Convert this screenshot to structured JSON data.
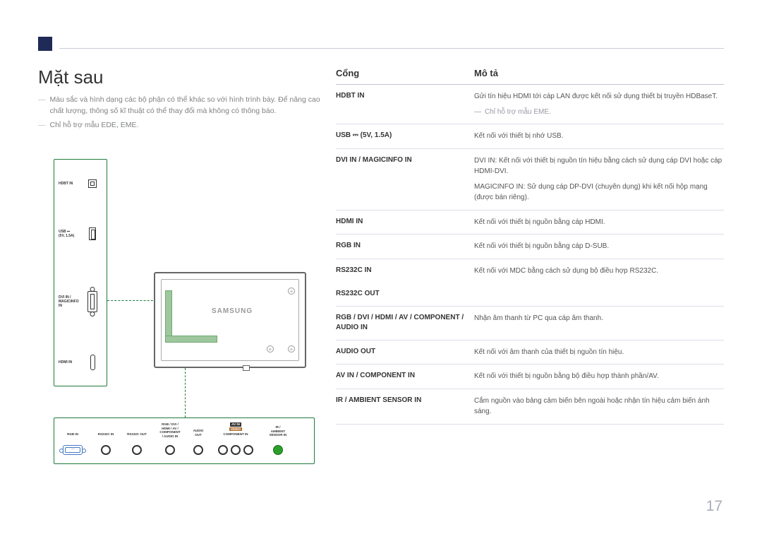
{
  "page": {
    "title": "Mặt sau",
    "number": "17",
    "brand_label": "SAMSUNG"
  },
  "colors": {
    "header_block": "#1f2a56",
    "rule": "#c7cbda",
    "diagram_border": "#1f7a3a",
    "dsub_blue": "#4679c4",
    "jack_green": "#2aa02a",
    "text_muted": "#808284"
  },
  "notes": [
    "Màu sắc và hình dạng các bộ phận có thể khác so với hình trình bày. Để nâng cao chất lượng, thông số kĩ thuật có thể thay đổi mà không có thông báo.",
    "Chỉ hỗ trợ mẫu EDE, EME."
  ],
  "table": {
    "head_port": "Cổng",
    "head_desc": "Mô tả",
    "rows": [
      {
        "port": "HDBT IN",
        "desc": "Gửi tín hiệu HDMI tới cáp LAN được kết nối sử dụng thiết bị truyền HDBaseT.",
        "note": "Chỉ hỗ trợ mẫu EME."
      },
      {
        "port": "USB ⎓ (5V, 1.5A)",
        "desc": "Kết nối với thiết bị nhớ USB."
      },
      {
        "port": "DVI IN / MAGICINFO IN",
        "desc": "DVI IN: Kết nối với thiết bị nguồn tín hiệu bằng cách sử dụng cáp DVI hoặc cáp HDMI-DVI.\nMAGICINFO IN: Sử dụng cáp DP-DVI (chuyên dụng) khi kết nối hộp mạng (được bán riêng)."
      },
      {
        "port": "HDMI IN",
        "desc": "Kết nối với thiết bị nguồn bằng cáp HDMI."
      },
      {
        "port": "RGB IN",
        "desc": "Kết nối với thiết bị nguồn bằng cáp D-SUB."
      },
      {
        "port": "RS232C IN",
        "desc": "Kết nối với MDC bằng cách sử dụng bộ điều hợp RS232C."
      },
      {
        "port": "RS232C OUT",
        "desc": ""
      },
      {
        "port": "RGB / DVI / HDMI / AV / COMPONENT / AUDIO IN",
        "desc": "Nhận âm thanh từ PC qua cáp âm thanh."
      },
      {
        "port": "AUDIO OUT",
        "desc": "Kết nối với âm thanh của thiết bị nguồn tín hiệu."
      },
      {
        "port": "AV IN / COMPONENT IN",
        "desc": "Kết nối với thiết bị nguồn bằng bộ điều hợp thành phần/AV."
      },
      {
        "port": "IR / AMBIENT SENSOR IN",
        "desc": "Cắm nguồn vào bảng cảm biến bên ngoài hoặc nhận tín hiệu cảm biến ánh sáng."
      }
    ]
  },
  "vports": [
    {
      "label": "HDBT IN"
    },
    {
      "label": "USB ⎓\n(5V, 1.5A)"
    },
    {
      "label": "DVI IN /\nMAGICINFO IN"
    },
    {
      "label": "HDMI IN"
    }
  ],
  "hports_labels": [
    "RGB IN",
    "RS232C IN",
    "RS232C OUT",
    "RGB / DVI /\nHDMI / AV /\nCOMPONENT\n/ AUDIO IN",
    "AUDIO\nOUT",
    "AV IN",
    "VIDEO",
    "COMPONENT IN",
    "IR /\nAMBIENT\nSENSOR IN"
  ]
}
